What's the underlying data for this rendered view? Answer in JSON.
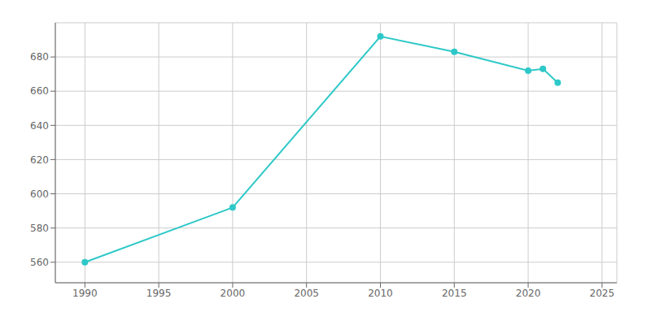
{
  "chart_data": {
    "type": "line",
    "x": [
      1990,
      2000,
      2010,
      2015,
      2020,
      2021,
      2022
    ],
    "values": [
      560,
      592,
      692,
      683,
      672,
      673,
      665
    ],
    "color": "#2ec8c8",
    "marker": "o",
    "xlim": [
      1988,
      2026
    ],
    "ylim": [
      548,
      700
    ],
    "xticks": [
      1990,
      1995,
      2000,
      2005,
      2010,
      2015,
      2020,
      2025
    ],
    "yticks": [
      560,
      580,
      600,
      620,
      640,
      660,
      680
    ],
    "grid": true
  }
}
